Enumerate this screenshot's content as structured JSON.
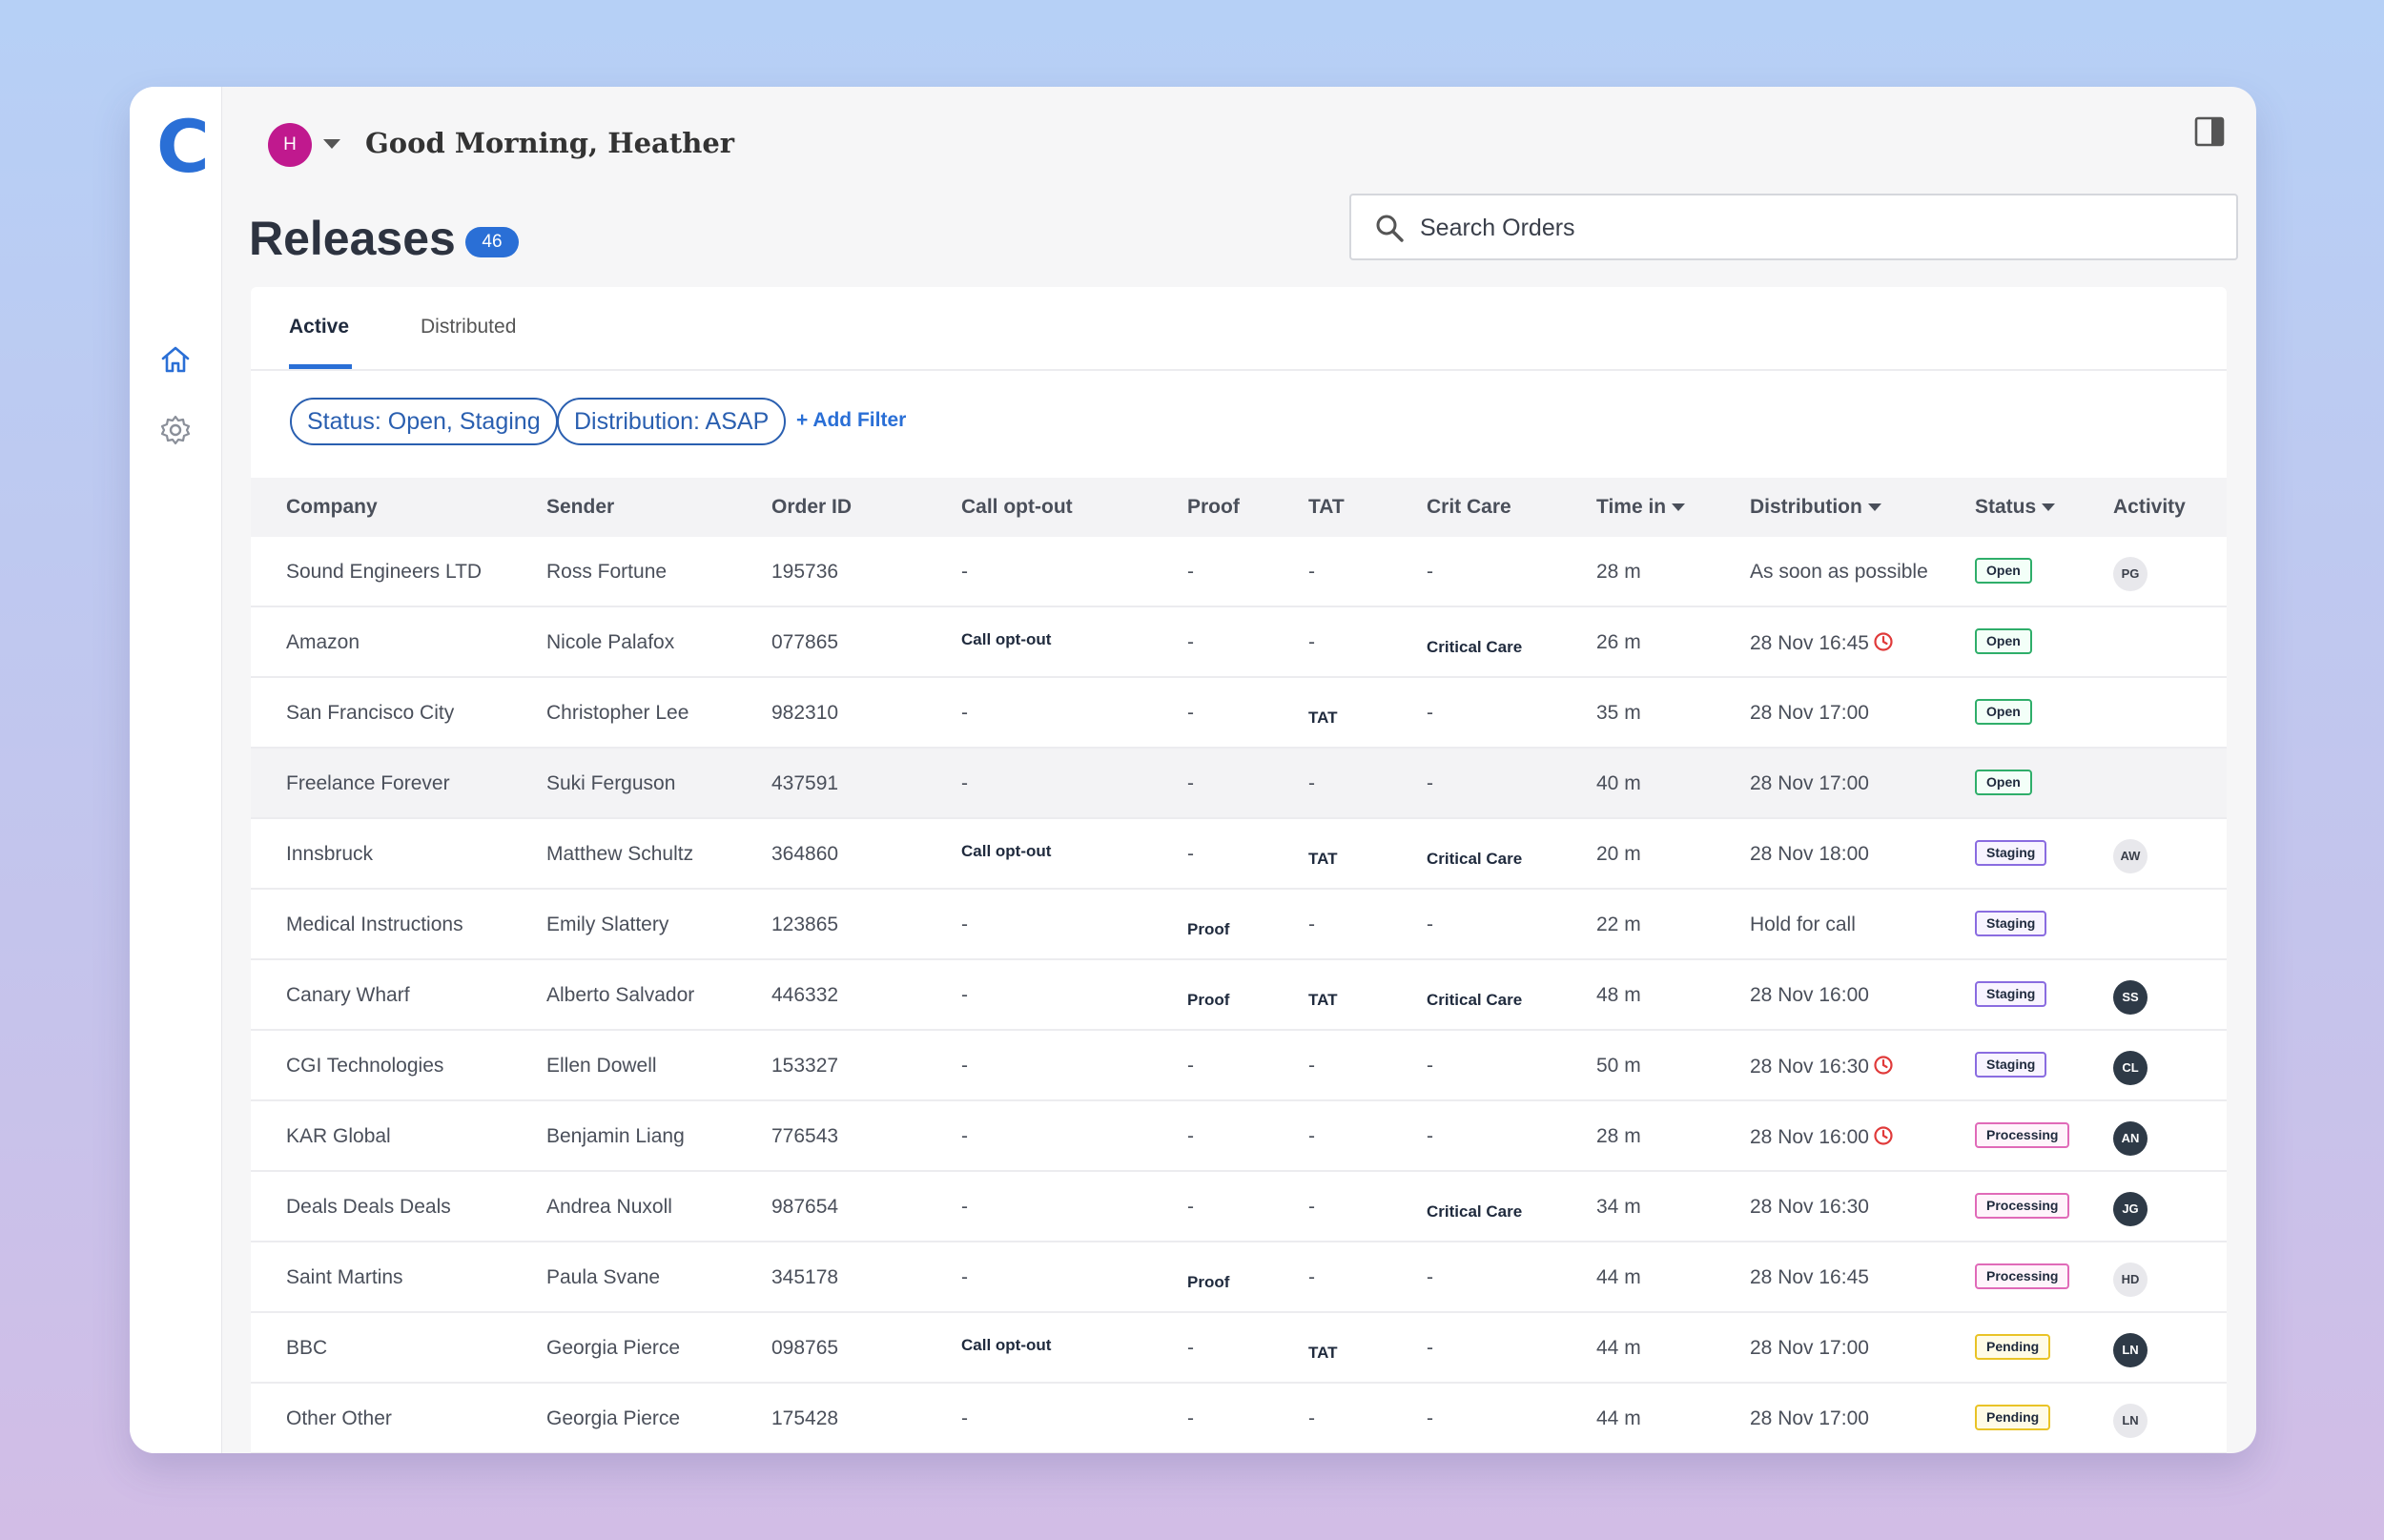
{
  "app": {
    "logo_letter": "C",
    "user_initial": "H",
    "greeting": "Good Morning, Heather"
  },
  "page": {
    "title": "Releases",
    "count": "46"
  },
  "search": {
    "placeholder": "Search Orders"
  },
  "tabs": [
    {
      "label": "Active",
      "active": true
    },
    {
      "label": "Distributed",
      "active": false
    }
  ],
  "filters": {
    "chips": [
      "Status: Open, Staging",
      "Distribution: ASAP"
    ],
    "add_label": "+ Add Filter"
  },
  "columns": [
    "Company",
    "Sender",
    "Order ID",
    "Call opt-out",
    "Proof",
    "TAT",
    "Crit Care",
    "Time in",
    "Distribution",
    "Status",
    "Activity"
  ],
  "rows": [
    {
      "company": "Sound Engineers LTD",
      "sender": "Ross Fortune",
      "order_id": "195736",
      "call_opt_out": "-",
      "proof": "-",
      "tat": "-",
      "crit_care": "-",
      "time_in": "28 m",
      "distribution": "As soon as possible",
      "late": false,
      "status": "Open",
      "activity": "PG",
      "activity_style": "light"
    },
    {
      "company": "Amazon",
      "sender": "Nicole Palafox",
      "order_id": "077865",
      "call_opt_out": "Call opt-out",
      "proof": "-",
      "tat": "-",
      "crit_care": "Critical Care",
      "time_in": "26 m",
      "distribution": "28 Nov 16:45",
      "late": true,
      "status": "Open",
      "activity": "",
      "activity_style": ""
    },
    {
      "company": "San Francisco City",
      "sender": "Christopher Lee",
      "order_id": "982310",
      "call_opt_out": "-",
      "proof": "-",
      "tat": "TAT",
      "crit_care": "-",
      "time_in": "35 m",
      "distribution": "28 Nov 17:00",
      "late": false,
      "status": "Open",
      "activity": "",
      "activity_style": ""
    },
    {
      "company": "Freelance Forever",
      "sender": "Suki Ferguson",
      "order_id": "437591",
      "call_opt_out": "-",
      "proof": "-",
      "tat": "-",
      "crit_care": "-",
      "time_in": "40 m",
      "distribution": "28 Nov 17:00",
      "late": false,
      "status": "Open",
      "activity": "",
      "activity_style": ""
    },
    {
      "company": "Innsbruck",
      "sender": "Matthew Schultz",
      "order_id": "364860",
      "call_opt_out": "Call opt-out",
      "proof": "-",
      "tat": "TAT",
      "crit_care": "Critical Care",
      "time_in": "20 m",
      "distribution": "28 Nov 18:00",
      "late": false,
      "status": "Staging",
      "activity": "AW",
      "activity_style": "light"
    },
    {
      "company": "Medical Instructions",
      "sender": "Emily Slattery",
      "order_id": "123865",
      "call_opt_out": "-",
      "proof": "Proof",
      "tat": "-",
      "crit_care": "-",
      "time_in": "22 m",
      "distribution": "Hold for call",
      "late": false,
      "status": "Staging",
      "activity": "",
      "activity_style": ""
    },
    {
      "company": "Canary Wharf",
      "sender": "Alberto Salvador",
      "order_id": "446332",
      "call_opt_out": "-",
      "proof": "Proof",
      "tat": "TAT",
      "crit_care": "Critical Care",
      "time_in": "48 m",
      "distribution": "28 Nov 16:00",
      "late": false,
      "status": "Staging",
      "activity": "SS",
      "activity_style": "dark"
    },
    {
      "company": "CGI Technologies",
      "sender": "Ellen Dowell",
      "order_id": "153327",
      "call_opt_out": "-",
      "proof": "-",
      "tat": "-",
      "crit_care": "-",
      "time_in": "50 m",
      "distribution": "28 Nov 16:30",
      "late": true,
      "status": "Staging",
      "activity": "CL",
      "activity_style": "dark"
    },
    {
      "company": "KAR Global",
      "sender": "Benjamin Liang",
      "order_id": "776543",
      "call_opt_out": "-",
      "proof": "-",
      "tat": "-",
      "crit_care": "-",
      "time_in": "28 m",
      "distribution": "28 Nov 16:00",
      "late": true,
      "status": "Processing",
      "activity": "AN",
      "activity_style": "dark"
    },
    {
      "company": "Deals Deals Deals",
      "sender": "Andrea Nuxoll",
      "order_id": "987654",
      "call_opt_out": "-",
      "proof": "-",
      "tat": "-",
      "crit_care": "Critical Care",
      "time_in": "34 m",
      "distribution": "28 Nov 16:30",
      "late": false,
      "status": "Processing",
      "activity": "JG",
      "activity_style": "dark"
    },
    {
      "company": "Saint Martins",
      "sender": "Paula Svane",
      "order_id": "345178",
      "call_opt_out": "-",
      "proof": "Proof",
      "tat": "-",
      "crit_care": "-",
      "time_in": "44 m",
      "distribution": "28 Nov 16:45",
      "late": false,
      "status": "Processing",
      "activity": "HD",
      "activity_style": "light"
    },
    {
      "company": "BBC",
      "sender": "Georgia Pierce",
      "order_id": "098765",
      "call_opt_out": "Call opt-out",
      "proof": "-",
      "tat": "TAT",
      "crit_care": "-",
      "time_in": "44 m",
      "distribution": "28 Nov 17:00",
      "late": false,
      "status": "Pending",
      "activity": "LN",
      "activity_style": "dark"
    },
    {
      "company": "Other Other",
      "sender": "Georgia Pierce",
      "order_id": "175428",
      "call_opt_out": "-",
      "proof": "-",
      "tat": "-",
      "crit_care": "-",
      "time_in": "44 m",
      "distribution": "28 Nov 17:00",
      "late": false,
      "status": "Pending",
      "activity": "LN",
      "activity_style": "light"
    }
  ],
  "highlighted_row": 3,
  "icons": {
    "home": "home-icon",
    "settings": "gear-icon",
    "search": "search-icon",
    "panel": "panel-toggle-icon",
    "late": "clock-icon"
  },
  "colors": {
    "accent": "#2a6fd6",
    "avatar": "#c0198e",
    "late": "#e03a3a",
    "open": "#2fae6a",
    "staging": "#8a6ce0",
    "processing": "#e06ab8",
    "pending": "#e9c326"
  }
}
